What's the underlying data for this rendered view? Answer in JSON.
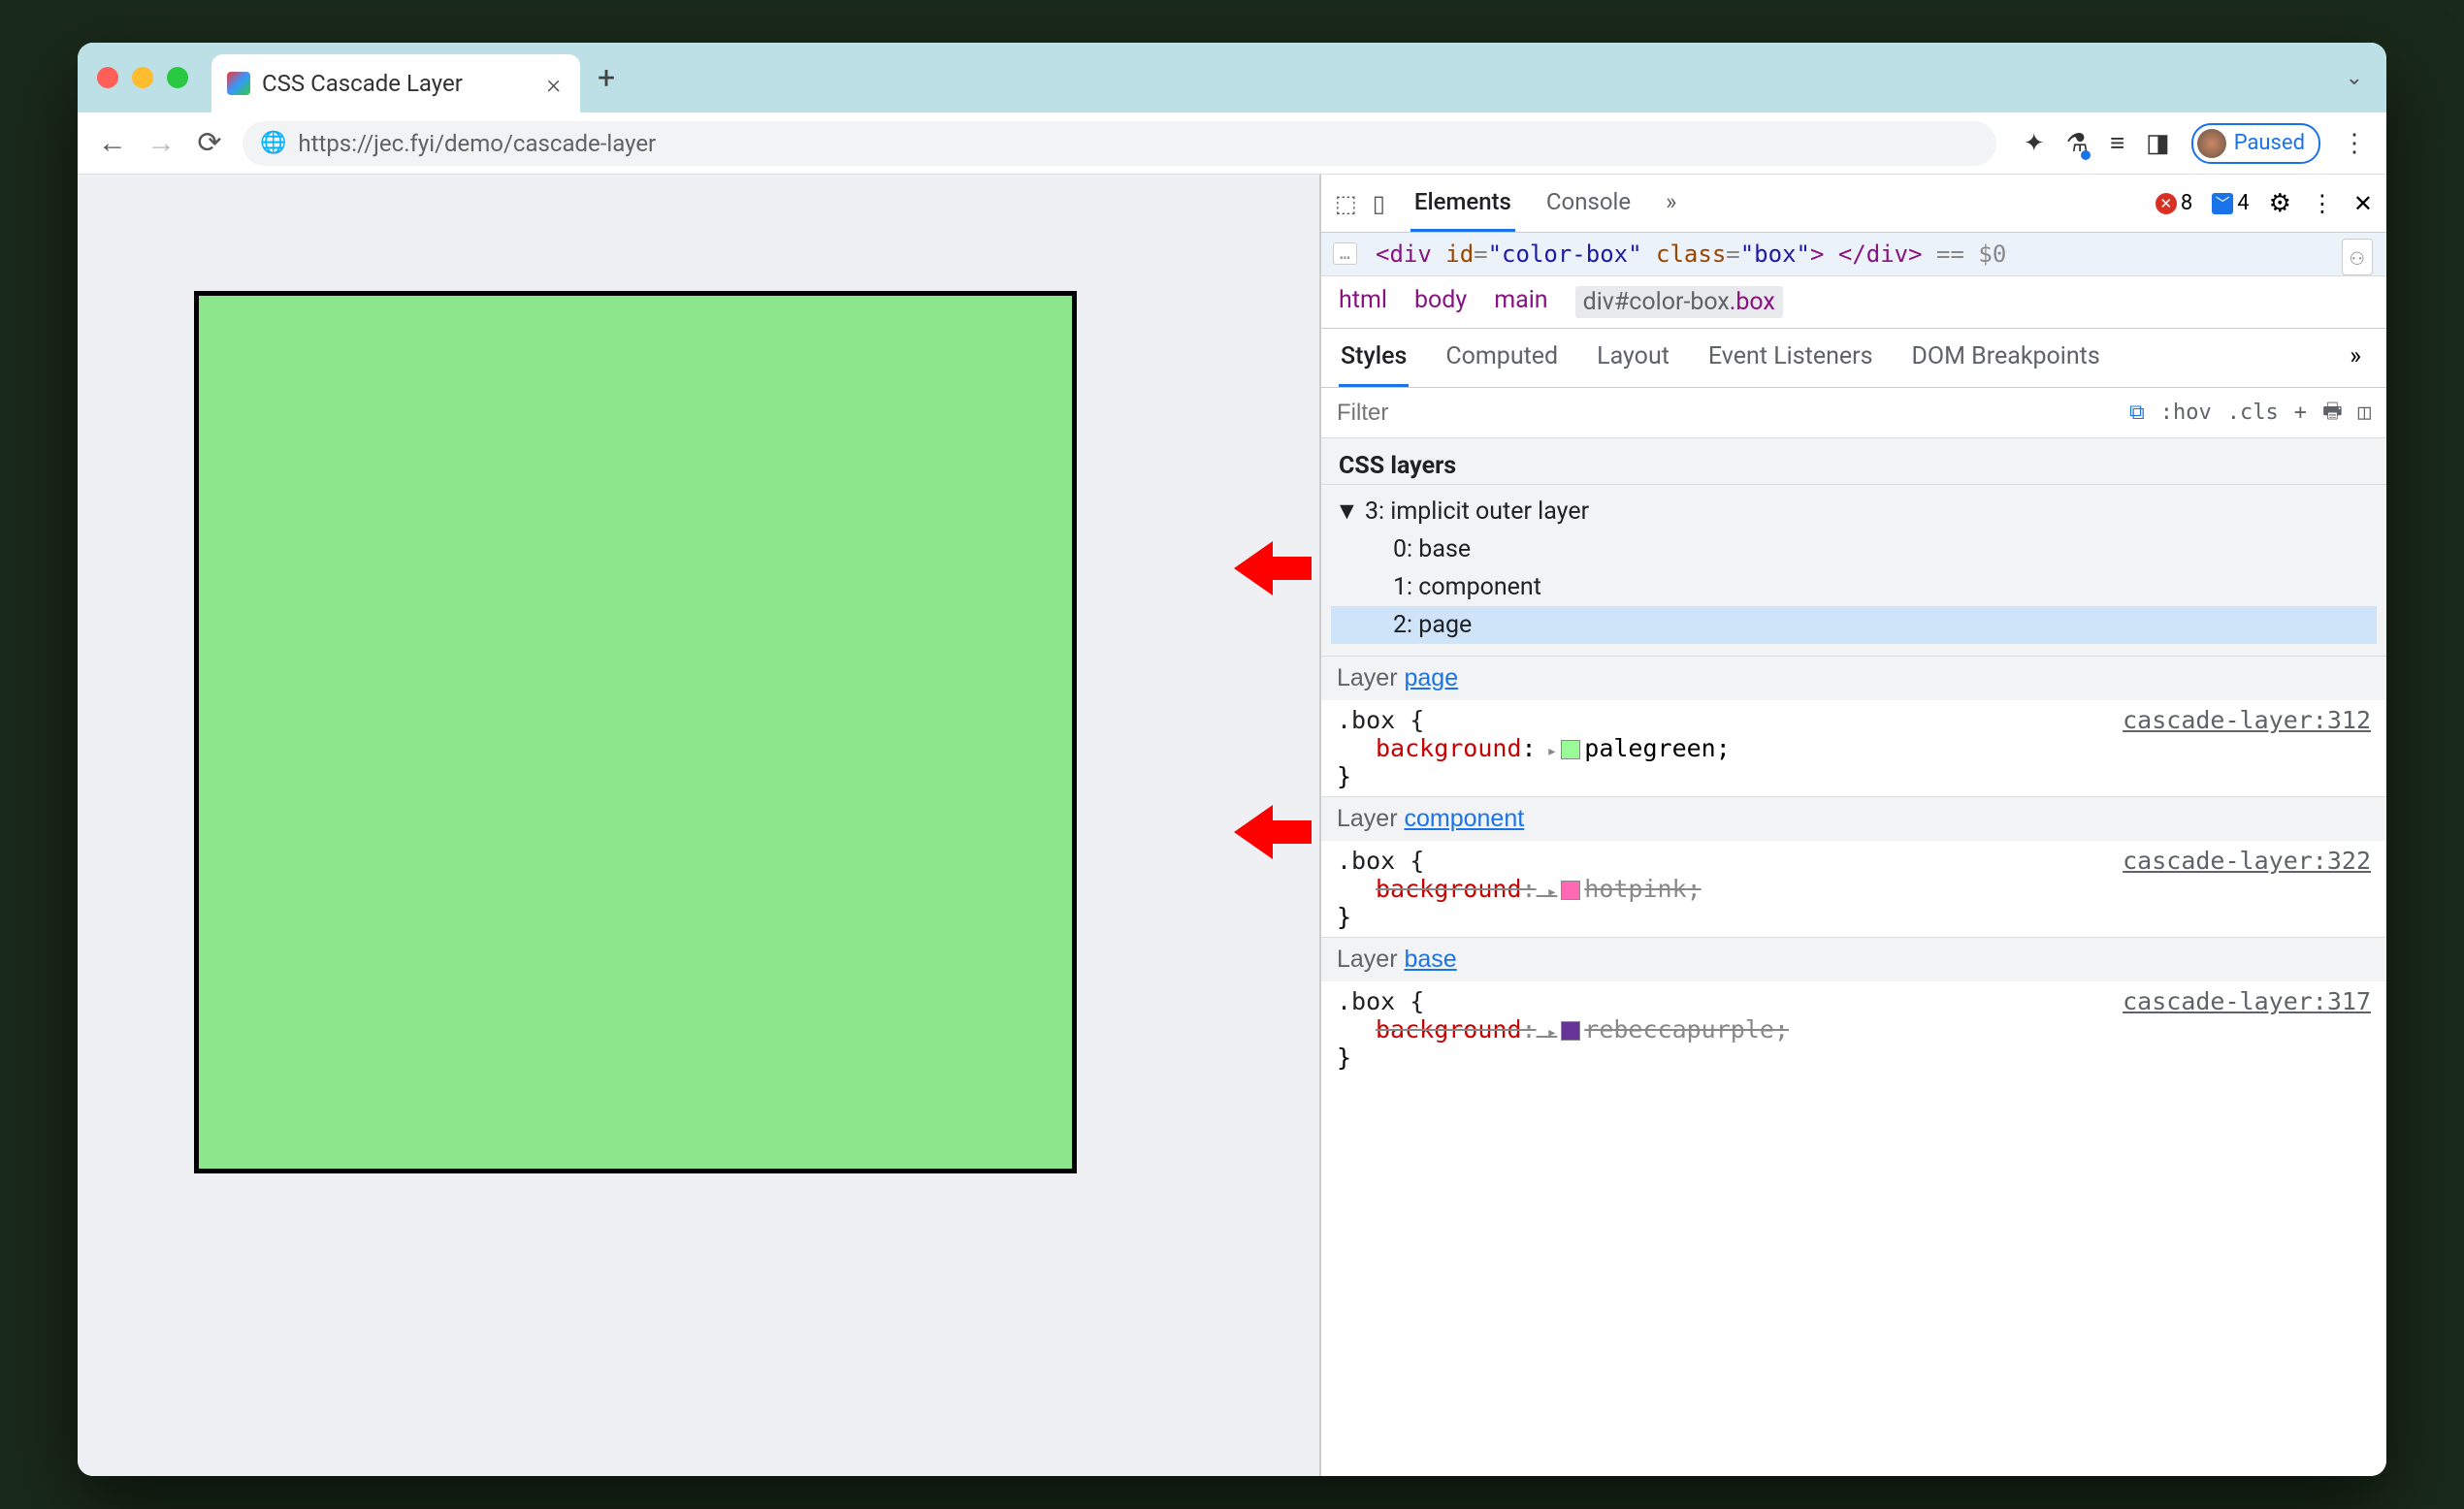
{
  "browser": {
    "tab_title": "CSS Cascade Layer",
    "url": "https://jec.fyi/demo/cascade-layer",
    "paused_label": "Paused"
  },
  "page": {
    "box_color": "#8ce78c",
    "box_border": "#000000",
    "page_bg": "#eef0f4"
  },
  "arrows": {
    "color": "#ff0000"
  },
  "devtools": {
    "tabs": {
      "elements": "Elements",
      "console": "Console"
    },
    "badges": {
      "errors": "8",
      "messages": "4"
    },
    "dom_line": {
      "open": "<div",
      "id_attr": "id",
      "id_val": "\"color-box\"",
      "class_attr": "class",
      "class_val": "\"box\"",
      "close": "> </div>",
      "suffix": "== $0"
    },
    "breadcrumb": [
      "html",
      "body",
      "main",
      "div#color-box.box"
    ],
    "styles_tabs": [
      "Styles",
      "Computed",
      "Layout",
      "Event Listeners",
      "DOM Breakpoints"
    ],
    "filter_placeholder": "Filter",
    "filter_tools": {
      "hov": ":hov",
      "cls": ".cls"
    },
    "layers": {
      "title": "CSS layers",
      "root": "3: implicit outer layer",
      "children": [
        "0: base",
        "1: component",
        "2: page"
      ],
      "selected_index": 2
    },
    "rules": [
      {
        "layer_prefix": "Layer ",
        "layer": "page",
        "selector": ".box {",
        "source": "cascade-layer:312",
        "prop": "background",
        "value": "palegreen",
        "swatch": "#98fb98",
        "strike": false,
        "close": "}"
      },
      {
        "layer_prefix": "Layer ",
        "layer": "component",
        "selector": ".box {",
        "source": "cascade-layer:322",
        "prop": "background",
        "value": "hotpink",
        "swatch": "#ff69b4",
        "strike": true,
        "close": "}"
      },
      {
        "layer_prefix": "Layer ",
        "layer": "base",
        "selector": ".box {",
        "source": "cascade-layer:317",
        "prop": "background",
        "value": "rebeccapurple",
        "swatch": "#663399",
        "strike": true,
        "close": "}"
      }
    ]
  }
}
